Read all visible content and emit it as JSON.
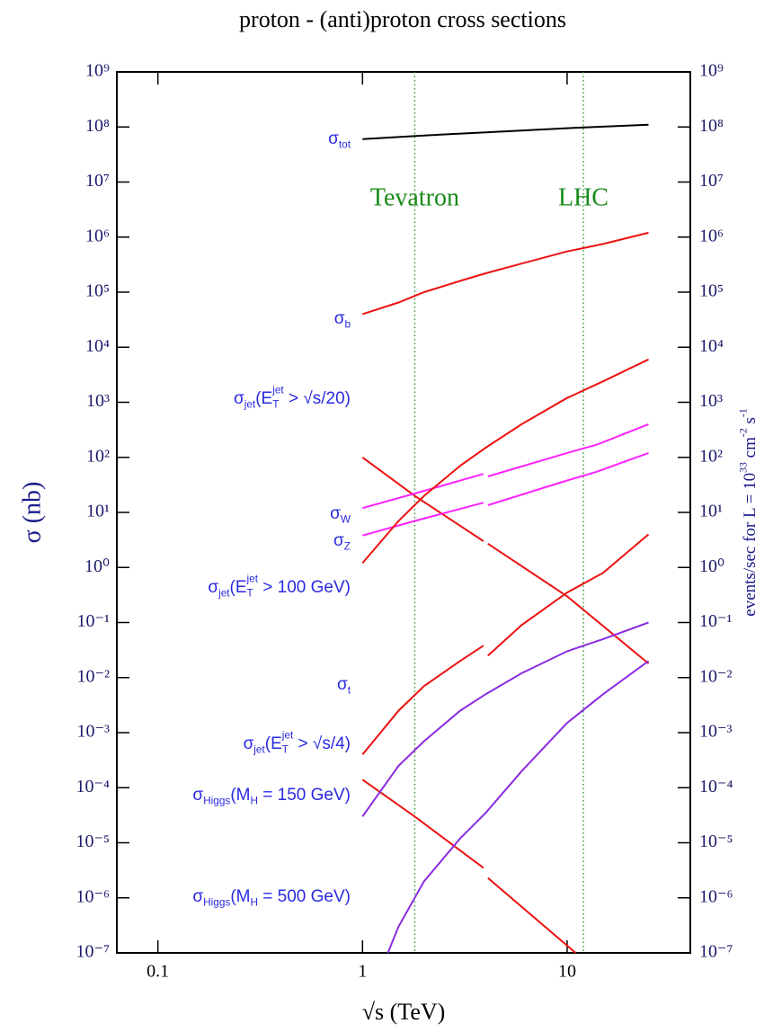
{
  "chart_data": {
    "type": "line",
    "title": "proton - (anti)proton cross sections",
    "x_label": "√s   (TeV)",
    "y_label": "σ  (nb)",
    "y2_label": [
      {
        "text": "events/sec  for  L = 10",
        "pos": "base"
      },
      {
        "text": "33",
        "pos": "sup"
      },
      {
        "text": " cm",
        "pos": "base"
      },
      {
        "text": "-2",
        "pos": "sup"
      },
      {
        "text": " s",
        "pos": "base"
      },
      {
        "text": "-1",
        "pos": "sup"
      }
    ],
    "log_x": true,
    "log_y": true,
    "xlim": [
      0.063,
      40
    ],
    "xticks": [
      0.1,
      1,
      10
    ],
    "ylim": [
      1e-07,
      1000000000.0
    ],
    "yticks": [
      {
        "value": 1e-07,
        "label": "10⁻⁷"
      },
      {
        "value": 1e-06,
        "label": "10⁻⁶"
      },
      {
        "value": 1e-05,
        "label": "10⁻⁵"
      },
      {
        "value": 0.0001,
        "label": "10⁻⁴"
      },
      {
        "value": 0.001,
        "label": "10⁻³"
      },
      {
        "value": 0.01,
        "label": "10⁻²"
      },
      {
        "value": 0.1,
        "label": "10⁻¹"
      },
      {
        "value": 1,
        "label": "10⁰"
      },
      {
        "value": 10,
        "label": "10¹"
      },
      {
        "value": 100,
        "label": "10²"
      },
      {
        "value": 1000,
        "label": "10³"
      },
      {
        "value": 10000.0,
        "label": "10⁴"
      },
      {
        "value": 100000.0,
        "label": "10⁵"
      },
      {
        "value": 1000000.0,
        "label": "10⁶"
      },
      {
        "value": 10000000.0,
        "label": "10⁷"
      },
      {
        "value": 100000000.0,
        "label": "10⁸"
      },
      {
        "value": 1000000000.0,
        "label": "10⁹"
      }
    ],
    "annotations": [
      {
        "text": "Tevatron",
        "x": 1.8,
        "color": "#1a8a1a"
      },
      {
        "text": "LHC",
        "x": 12,
        "color": "#1a8a1a"
      }
    ],
    "series": [
      {
        "label": [
          {
            "text": "σ",
            "pos": "base"
          },
          {
            "text": "tot",
            "pos": "sub"
          }
        ],
        "color": "#000000",
        "x": [
          1,
          2,
          4,
          10,
          25
        ],
        "values": [
          60000000.0,
          70000000.0,
          80000000.0,
          95000000.0,
          110000000.0
        ]
      },
      {
        "label": [
          {
            "text": "σ",
            "pos": "base"
          },
          {
            "text": "b",
            "pos": "sub"
          }
        ],
        "color": "#ee1111",
        "x": [
          1,
          1.5,
          2,
          3,
          4,
          6,
          10,
          15,
          25
        ],
        "values": [
          40000.0,
          65000.0,
          100000.0,
          160000.0,
          220000.0,
          330000.0,
          550000.0,
          750000.0,
          1200000.0
        ]
      },
      {
        "label": [
          {
            "text": "σ",
            "pos": "base"
          },
          {
            "text": "jet",
            "pos": "sub"
          },
          {
            "text": "(E",
            "pos": "base"
          },
          {
            "text": "T",
            "pos": "sub"
          },
          {
            "text": "jet",
            "pos": "sup"
          },
          {
            "text": " > √s/20)",
            "pos": "base"
          }
        ],
        "color": "#ee1111",
        "x": [
          1,
          1.8,
          3.9,
          4,
          4.1,
          10,
          25
        ],
        "values": [
          100,
          20,
          3,
          null,
          2.7,
          0.3,
          0.018
        ]
      },
      {
        "label": [
          {
            "text": "σ",
            "pos": "base"
          },
          {
            "text": "W",
            "pos": "sub"
          }
        ],
        "color": "#ff22ff",
        "x": [
          1,
          1.8,
          3.9,
          4,
          4.1,
          10,
          14,
          25
        ],
        "values": [
          12,
          22,
          50,
          null,
          45,
          120,
          170,
          400
        ]
      },
      {
        "label": [
          {
            "text": "σ",
            "pos": "base"
          },
          {
            "text": "Z",
            "pos": "sub"
          }
        ],
        "color": "#ff22ff",
        "x": [
          1,
          1.8,
          3.9,
          4,
          4.1,
          10,
          14,
          25
        ],
        "values": [
          3.8,
          7,
          15,
          null,
          13.5,
          38,
          55,
          120
        ]
      },
      {
        "label": [
          {
            "text": "σ",
            "pos": "base"
          },
          {
            "text": "jet",
            "pos": "sub"
          },
          {
            "text": "(E",
            "pos": "base"
          },
          {
            "text": "T",
            "pos": "sub"
          },
          {
            "text": "jet",
            "pos": "sup"
          },
          {
            "text": " > 100 GeV)",
            "pos": "base"
          }
        ],
        "color": "#ee1111",
        "x": [
          1,
          1.5,
          2,
          3,
          4,
          6,
          10,
          15,
          25
        ],
        "values": [
          1.2,
          7,
          20,
          70,
          150,
          400,
          1200,
          2400,
          6000
        ]
      },
      {
        "label": [
          {
            "text": "σ",
            "pos": "base"
          },
          {
            "text": "t",
            "pos": "sub"
          }
        ],
        "color": "#ee1111",
        "x": [
          1,
          1.5,
          2,
          3,
          3.9,
          4,
          4.1,
          6,
          10,
          15,
          25
        ],
        "values": [
          0.0004,
          0.0025,
          0.007,
          0.02,
          0.038,
          null,
          0.025,
          0.09,
          0.35,
          0.8,
          4
        ]
      },
      {
        "label": [
          {
            "text": "σ",
            "pos": "base"
          },
          {
            "text": "jet",
            "pos": "sub"
          },
          {
            "text": "(E",
            "pos": "base"
          },
          {
            "text": "T",
            "pos": "sub"
          },
          {
            "text": "jet",
            "pos": "sup"
          },
          {
            "text": " > √s/4)",
            "pos": "base"
          }
        ],
        "color": "#ee1111",
        "x": [
          1,
          1.8,
          3.9,
          4,
          4.1,
          11
        ],
        "values": [
          0.00014,
          3e-05,
          3.5e-06,
          null,
          2.3e-06,
          1e-07
        ]
      },
      {
        "label": [
          {
            "text": "σ",
            "pos": "base"
          },
          {
            "text": "Higgs",
            "pos": "sub"
          },
          {
            "text": "(M",
            "pos": "base"
          },
          {
            "text": "H",
            "pos": "sub"
          },
          {
            "text": " = 150 GeV)",
            "pos": "base"
          }
        ],
        "color": "#8a2be2",
        "x": [
          1,
          1.5,
          2,
          3,
          4,
          6,
          10,
          15,
          25
        ],
        "values": [
          3e-05,
          0.00025,
          0.0007,
          0.0025,
          0.005,
          0.012,
          0.03,
          0.05,
          0.1
        ]
      },
      {
        "label": [
          {
            "text": "σ",
            "pos": "base"
          },
          {
            "text": "Higgs",
            "pos": "sub"
          },
          {
            "text": "(M",
            "pos": "base"
          },
          {
            "text": "H",
            "pos": "sub"
          },
          {
            "text": " = 500 GeV)",
            "pos": "base"
          }
        ],
        "color": "#8a2be2",
        "x": [
          1.33,
          1.5,
          2,
          3,
          4,
          6,
          10,
          15,
          25
        ],
        "values": [
          1e-07,
          3e-07,
          2e-06,
          1.2e-05,
          3.5e-05,
          0.0002,
          0.0015,
          0.005,
          0.02
        ]
      }
    ]
  }
}
